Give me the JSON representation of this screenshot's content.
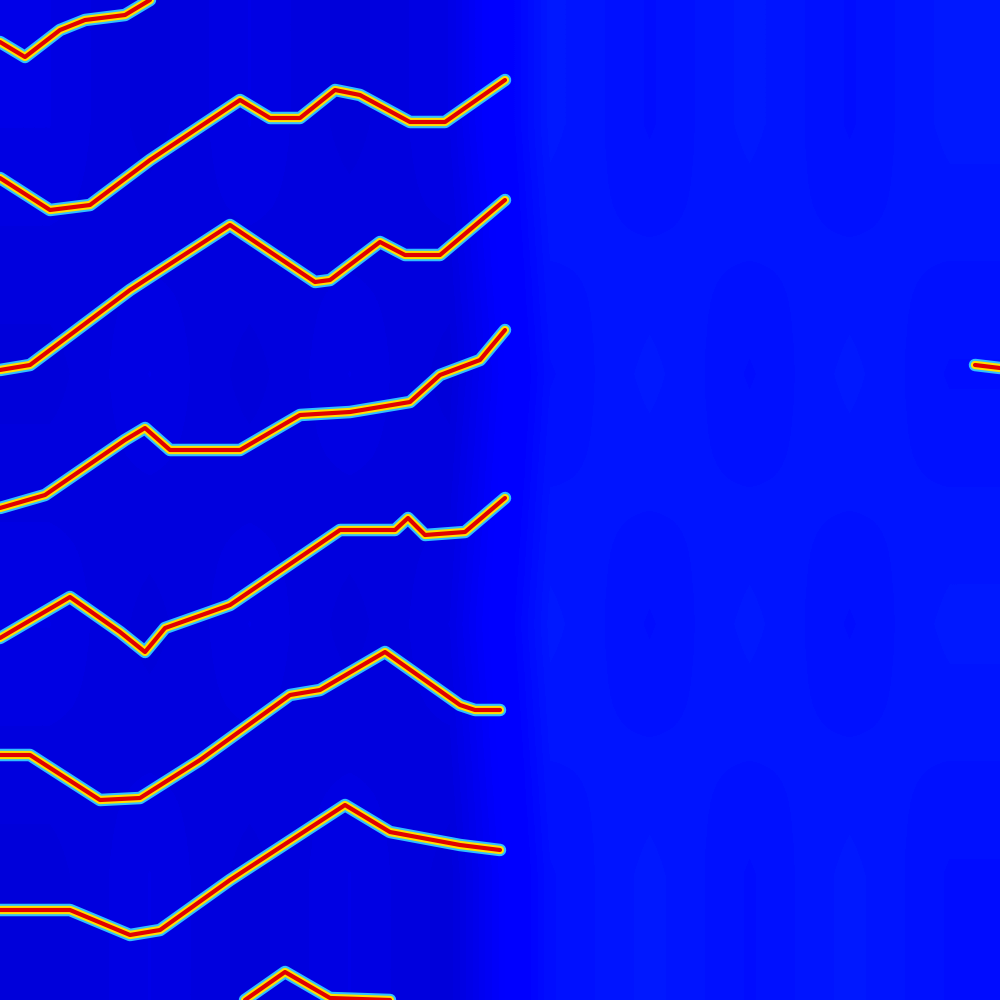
{
  "chart_data": {
    "type": "heatmap",
    "xlim": [
      0,
      1000
    ],
    "ylim": [
      1000,
      0
    ],
    "tick_labels": false,
    "color_range": [
      0,
      1
    ],
    "cells": [
      [
        0.09,
        0.08,
        0.09,
        0.08,
        0.09,
        0.15,
        0.14,
        0.15,
        0.14,
        0.15
      ],
      [
        0.08,
        0.09,
        0.08,
        0.09,
        0.08,
        0.14,
        0.15,
        0.14,
        0.15,
        0.14
      ],
      [
        0.09,
        0.08,
        0.09,
        0.08,
        0.09,
        0.15,
        0.14,
        0.15,
        0.14,
        0.15
      ],
      [
        0.08,
        0.09,
        0.08,
        0.09,
        0.08,
        0.14,
        0.15,
        0.14,
        0.15,
        0.14
      ]
    ],
    "series": [
      {
        "color": "#e00000",
        "x": [
          0,
          25,
          60,
          85,
          125,
          150
        ],
        "values": [
          42,
          57,
          30,
          20,
          15,
          0
        ]
      },
      {
        "color": "#e00000",
        "x": [
          0,
          50,
          90,
          150,
          240,
          270,
          300,
          335,
          360,
          410,
          445,
          505
        ],
        "values": [
          178,
          210,
          205,
          160,
          100,
          118,
          118,
          90,
          95,
          122,
          122,
          80
        ]
      },
      {
        "color": "#e00000",
        "x": [
          0,
          30,
          130,
          230,
          315,
          330,
          380,
          405,
          440,
          505
        ],
        "values": [
          370,
          365,
          290,
          225,
          282,
          280,
          242,
          255,
          255,
          200
        ]
      },
      {
        "color": "#e00000",
        "x": [
          0,
          45,
          125,
          145,
          170,
          240,
          300,
          350,
          410,
          440,
          480,
          505
        ],
        "values": [
          508,
          495,
          440,
          428,
          450,
          450,
          415,
          412,
          402,
          375,
          360,
          330
        ]
      },
      {
        "color": "#e00000",
        "x": [
          0,
          70,
          120,
          145,
          165,
          230,
          340,
          395,
          408,
          425,
          465,
          505
        ],
        "values": [
          638,
          597,
          632,
          652,
          628,
          605,
          530,
          530,
          518,
          535,
          532,
          498
        ]
      },
      {
        "color": "#e00000",
        "x": [
          0,
          30,
          100,
          140,
          200,
          290,
          320,
          385,
          460,
          475,
          500
        ],
        "values": [
          755,
          755,
          800,
          798,
          760,
          695,
          690,
          652,
          705,
          710,
          710
        ]
      },
      {
        "color": "#e00000",
        "x": [
          0,
          70,
          130,
          160,
          230,
          345,
          390,
          460,
          500
        ],
        "values": [
          910,
          910,
          935,
          930,
          880,
          805,
          832,
          845,
          850
        ]
      },
      {
        "color": "#e00000",
        "x": [
          245,
          285,
          330,
          390
        ],
        "values": [
          1000,
          972,
          998,
          1000
        ]
      },
      {
        "color": "#e00000",
        "x": [
          975,
          1000
        ],
        "values": [
          365,
          368
        ]
      }
    ]
  }
}
